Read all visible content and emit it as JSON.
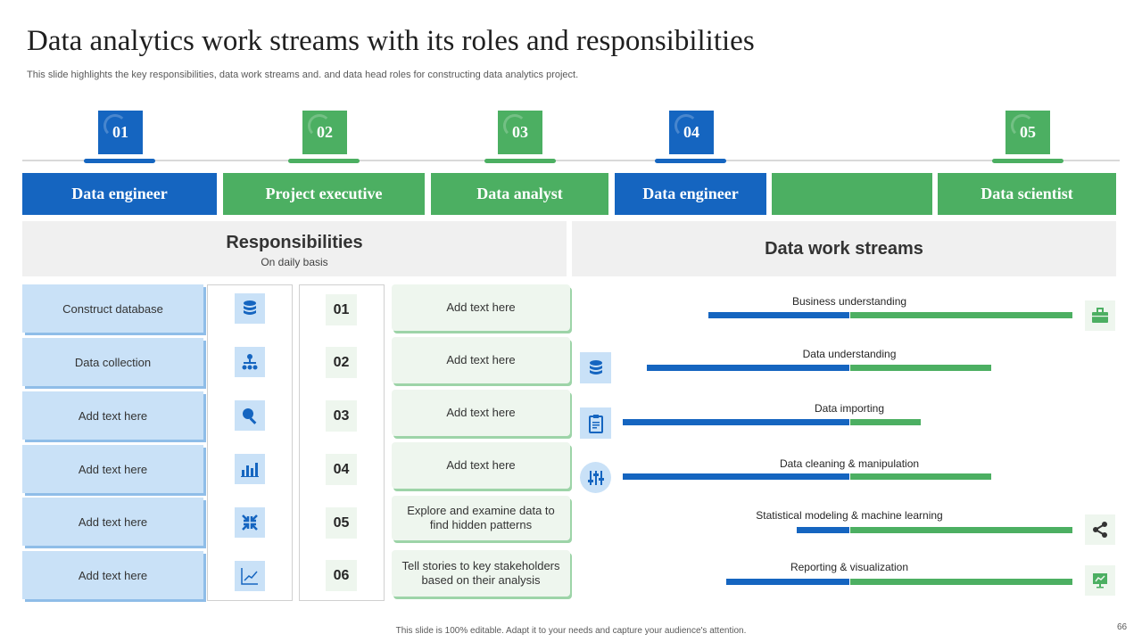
{
  "title": "Data analytics work streams with its roles and responsibilities",
  "subtitle": "This slide highlights the key responsibilities, data work streams and. and data head roles for  constructing data analytics project.",
  "steps": [
    "01",
    "02",
    "03",
    "04",
    "05"
  ],
  "roles": [
    "Data engineer",
    "Project executive",
    "Data analyst",
    "Data engineer",
    "",
    "Data scientist"
  ],
  "responsibilities": {
    "title": "Responsibilities",
    "subtitle": "On daily basis",
    "items": [
      "Construct database",
      "Data collection",
      "Add text here",
      "Add text here",
      "Add text here",
      "Add text here"
    ],
    "icons": [
      "database-icon",
      "hierarchy-icon",
      "search-icon",
      "bar-chart-icon",
      "collapse-arrows-icon",
      "line-chart-icon"
    ],
    "numbers": [
      "01",
      "02",
      "03",
      "04",
      "05",
      "06"
    ],
    "details": [
      "Add text here",
      "Add text here",
      "Add text here",
      "Add text here",
      "Explore and examine data to find hidden patterns",
      "Tell stories to key stakeholders based on their analysis"
    ]
  },
  "work_streams": {
    "title": "Data work streams",
    "middle_icons": [
      "database-icon",
      "clipboard-icon",
      "sliders-icon"
    ],
    "right_icons": [
      "briefcase-icon",
      "share-icon",
      "presentation-icon"
    ],
    "streams": [
      {
        "label": "Business understanding"
      },
      {
        "label": "Data understanding"
      },
      {
        "label": "Data importing"
      },
      {
        "label": "Data cleaning & manipulation"
      },
      {
        "label": "Statistical modeling & machine learning"
      },
      {
        "label": "Reporting & visualization"
      }
    ]
  },
  "colors": {
    "blue": "#1565c0",
    "green": "#4caf62",
    "light_blue": "#c9e1f7",
    "light_green": "#eef6ee"
  },
  "footer": "This slide is 100% editable.  Adapt it to your needs and capture your audience's attention.",
  "page_number": "66"
}
